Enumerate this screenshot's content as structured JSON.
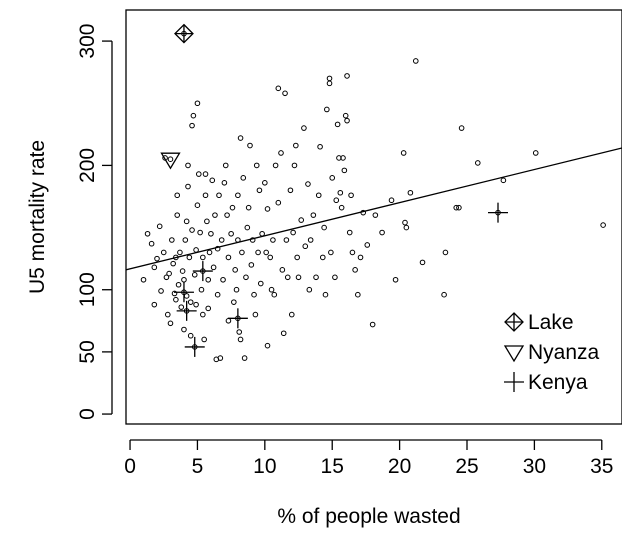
{
  "chart_data": {
    "type": "scatter",
    "xlabel": "% of people wasted",
    "ylabel": "U5 mortality rate",
    "xlim": [
      -0.3,
      36.5
    ],
    "ylim": [
      -8,
      325
    ],
    "xticks": [
      {
        "value": 0,
        "label": "0"
      },
      {
        "value": 5,
        "label": "5"
      },
      {
        "value": 10,
        "label": "10"
      },
      {
        "value": 15,
        "label": "15"
      },
      {
        "value": 20,
        "label": "20"
      },
      {
        "value": 25,
        "label": "25"
      },
      {
        "value": 30,
        "label": "30"
      },
      {
        "value": 35,
        "label": "35"
      }
    ],
    "yticks": [
      {
        "value": 0,
        "label": "0"
      },
      {
        "value": 50,
        "label": "50"
      },
      {
        "value": 100,
        "label": "100"
      },
      {
        "value": 200,
        "label": "200"
      },
      {
        "value": 300,
        "label": "300"
      }
    ],
    "legend": {
      "position": "bottom-right",
      "entries": [
        {
          "label": "Lake",
          "marker": "circle-plus"
        },
        {
          "label": "Nyanza",
          "marker": "triangle-down"
        },
        {
          "label": "Kenya",
          "marker": "plus"
        }
      ]
    },
    "trend_line": {
      "x": [
        -0.3,
        36.5
      ],
      "y": [
        116,
        214
      ]
    },
    "series": [
      {
        "marker": "circle",
        "points": [
          [
            1.0,
            108
          ],
          [
            1.3,
            145
          ],
          [
            1.6,
            137
          ],
          [
            1.8,
            118
          ],
          [
            1.8,
            88
          ],
          [
            2.0,
            125
          ],
          [
            2.2,
            151
          ],
          [
            2.3,
            99
          ],
          [
            2.5,
            130
          ],
          [
            2.6,
            206
          ],
          [
            2.7,
            110
          ],
          [
            2.8,
            80
          ],
          [
            2.9,
            113
          ],
          [
            3.0,
            73
          ],
          [
            3.1,
            140
          ],
          [
            3.2,
            121
          ],
          [
            3.3,
            97
          ],
          [
            3.4,
            92
          ],
          [
            3.4,
            126
          ],
          [
            3.5,
            176
          ],
          [
            3.5,
            160
          ],
          [
            3.6,
            104
          ],
          [
            3.7,
            130
          ],
          [
            3.8,
            86
          ],
          [
            3.9,
            115
          ],
          [
            4.0,
            68
          ],
          [
            4.0,
            108
          ],
          [
            4.1,
            140
          ],
          [
            4.2,
            155
          ],
          [
            4.2,
            95
          ],
          [
            4.3,
            200
          ],
          [
            4.3,
            183
          ],
          [
            4.4,
            126
          ],
          [
            4.5,
            63
          ],
          [
            4.5,
            90
          ],
          [
            4.6,
            148
          ],
          [
            4.6,
            232
          ],
          [
            4.7,
            240
          ],
          [
            4.8,
            112
          ],
          [
            4.9,
            88
          ],
          [
            4.9,
            132
          ],
          [
            5.0,
            168
          ],
          [
            5.0,
            250
          ],
          [
            5.1,
            193
          ],
          [
            5.2,
            146
          ],
          [
            5.3,
            100
          ],
          [
            5.4,
            80
          ],
          [
            5.4,
            126
          ],
          [
            5.5,
            60
          ],
          [
            5.6,
            176
          ],
          [
            5.6,
            193
          ],
          [
            5.7,
            155
          ],
          [
            5.8,
            108
          ],
          [
            5.8,
            85
          ],
          [
            5.9,
            130
          ],
          [
            6.0,
            145
          ],
          [
            6.1,
            188
          ],
          [
            6.2,
            118
          ],
          [
            6.3,
            160
          ],
          [
            6.4,
            44
          ],
          [
            6.5,
            96
          ],
          [
            6.5,
            133
          ],
          [
            6.6,
            176
          ],
          [
            6.7,
            45
          ],
          [
            6.8,
            140
          ],
          [
            6.9,
            108
          ],
          [
            7.0,
            186
          ],
          [
            7.1,
            200
          ],
          [
            7.2,
            160
          ],
          [
            7.3,
            126
          ],
          [
            7.3,
            75
          ],
          [
            7.5,
            145
          ],
          [
            7.6,
            166
          ],
          [
            7.7,
            90
          ],
          [
            7.8,
            116
          ],
          [
            7.9,
            100
          ],
          [
            8.0,
            176
          ],
          [
            8.0,
            140
          ],
          [
            8.1,
            66
          ],
          [
            8.2,
            222
          ],
          [
            8.2,
            60
          ],
          [
            8.3,
            130
          ],
          [
            8.4,
            190
          ],
          [
            8.5,
            45
          ],
          [
            8.6,
            110
          ],
          [
            8.7,
            150
          ],
          [
            8.8,
            166
          ],
          [
            8.9,
            216
          ],
          [
            9.0,
            120
          ],
          [
            9.1,
            140
          ],
          [
            9.2,
            96
          ],
          [
            9.3,
            80
          ],
          [
            9.4,
            200
          ],
          [
            9.5,
            130
          ],
          [
            9.6,
            180
          ],
          [
            9.7,
            105
          ],
          [
            9.8,
            145
          ],
          [
            10.0,
            186
          ],
          [
            10.1,
            130
          ],
          [
            10.2,
            165
          ],
          [
            10.2,
            55
          ],
          [
            10.4,
            126
          ],
          [
            10.5,
            100
          ],
          [
            10.6,
            140
          ],
          [
            10.7,
            96
          ],
          [
            10.8,
            200
          ],
          [
            11.0,
            262
          ],
          [
            11.0,
            170
          ],
          [
            11.2,
            210
          ],
          [
            11.3,
            116
          ],
          [
            11.4,
            65
          ],
          [
            11.5,
            258
          ],
          [
            11.6,
            140
          ],
          [
            11.7,
            110
          ],
          [
            11.9,
            180
          ],
          [
            12.0,
            80
          ],
          [
            12.1,
            146
          ],
          [
            12.2,
            200
          ],
          [
            12.3,
            216
          ],
          [
            12.4,
            126
          ],
          [
            12.5,
            110
          ],
          [
            12.7,
            156
          ],
          [
            12.9,
            230
          ],
          [
            13.0,
            135
          ],
          [
            13.2,
            185
          ],
          [
            13.3,
            100
          ],
          [
            13.4,
            140
          ],
          [
            13.6,
            160
          ],
          [
            13.8,
            110
          ],
          [
            14.0,
            176
          ],
          [
            14.1,
            215
          ],
          [
            14.3,
            126
          ],
          [
            14.4,
            150
          ],
          [
            14.5,
            96
          ],
          [
            14.6,
            245
          ],
          [
            14.8,
            270
          ],
          [
            14.8,
            266
          ],
          [
            14.9,
            130
          ],
          [
            15.0,
            190
          ],
          [
            15.2,
            110
          ],
          [
            15.3,
            172
          ],
          [
            15.4,
            233
          ],
          [
            15.5,
            206
          ],
          [
            15.6,
            178
          ],
          [
            15.7,
            166
          ],
          [
            15.8,
            206
          ],
          [
            15.9,
            196
          ],
          [
            16.0,
            240
          ],
          [
            16.1,
            272
          ],
          [
            16.1,
            236
          ],
          [
            16.3,
            146
          ],
          [
            16.4,
            176
          ],
          [
            16.5,
            130
          ],
          [
            16.7,
            116
          ],
          [
            16.9,
            96
          ],
          [
            17.1,
            126
          ],
          [
            17.3,
            162
          ],
          [
            17.6,
            136
          ],
          [
            18.0,
            72
          ],
          [
            18.2,
            160
          ],
          [
            18.7,
            146
          ],
          [
            19.4,
            172
          ],
          [
            19.7,
            108
          ],
          [
            20.3,
            210
          ],
          [
            20.4,
            154
          ],
          [
            20.5,
            150
          ],
          [
            20.8,
            178
          ],
          [
            21.2,
            284
          ],
          [
            21.7,
            122
          ],
          [
            23.3,
            96
          ],
          [
            23.4,
            130
          ],
          [
            24.2,
            166
          ],
          [
            24.4,
            166
          ],
          [
            24.6,
            230
          ],
          [
            25.8,
            202
          ],
          [
            27.7,
            188
          ],
          [
            30.1,
            210
          ],
          [
            35.1,
            152
          ]
        ]
      },
      {
        "name": "Lake",
        "marker": "circle-plus",
        "points": [
          [
            4.0,
            306
          ]
        ]
      },
      {
        "name": "Nyanza",
        "marker": "triangle-down",
        "points": [
          [
            3.0,
            205
          ]
        ]
      },
      {
        "name": "Kenya",
        "marker": "plus",
        "points": [
          [
            27.3,
            162
          ],
          [
            5.4,
            115
          ],
          [
            4.0,
            98
          ],
          [
            4.2,
            83
          ],
          [
            8.0,
            77
          ],
          [
            4.8,
            54
          ]
        ]
      }
    ]
  }
}
